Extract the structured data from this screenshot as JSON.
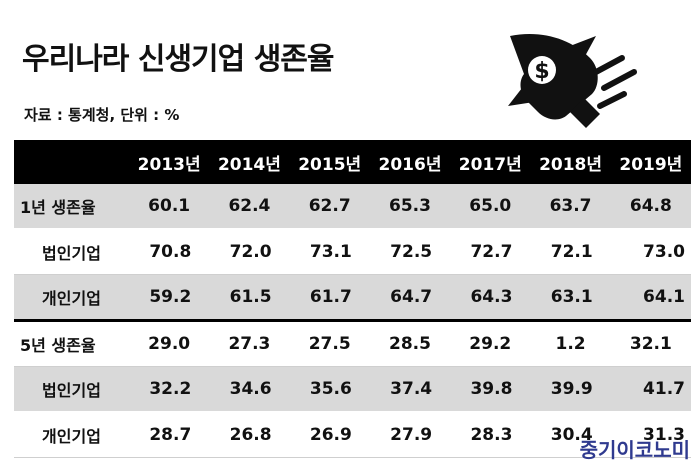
{
  "title": "우리나라 신생기업 생존율",
  "source": "자료 : 통계청, 단위 : %",
  "logo_text": "중기이코노미",
  "chart_data": {
    "type": "table",
    "title": "우리나라 신생기업 생존율",
    "columns": [
      "2013년",
      "2014년",
      "2015년",
      "2016년",
      "2017년",
      "2018년",
      "2019년"
    ],
    "rows": [
      {
        "label": "1년 생존율",
        "values": [
          "60.1",
          "62.4",
          "62.7",
          "65.3",
          "65.0",
          "63.7",
          "64.8"
        ]
      },
      {
        "label": "법인기업",
        "values": [
          "70.8",
          "72.0",
          "73.1",
          "72.5",
          "72.7",
          "72.1",
          "73.0"
        ]
      },
      {
        "label": "개인기업",
        "values": [
          "59.2",
          "61.5",
          "61.7",
          "64.7",
          "64.3",
          "63.1",
          "64.1"
        ]
      },
      {
        "label": "5년 생존율",
        "values": [
          "29.0",
          "27.3",
          "27.5",
          "28.5",
          "29.2",
          "1.2",
          "32.1"
        ]
      },
      {
        "label": "법인기업",
        "values": [
          "32.2",
          "34.6",
          "35.6",
          "37.4",
          "39.8",
          "39.9",
          "41.7"
        ]
      },
      {
        "label": "개인기업",
        "values": [
          "28.7",
          "26.8",
          "26.9",
          "27.9",
          "28.3",
          "30.4",
          "31.3"
        ]
      }
    ]
  }
}
